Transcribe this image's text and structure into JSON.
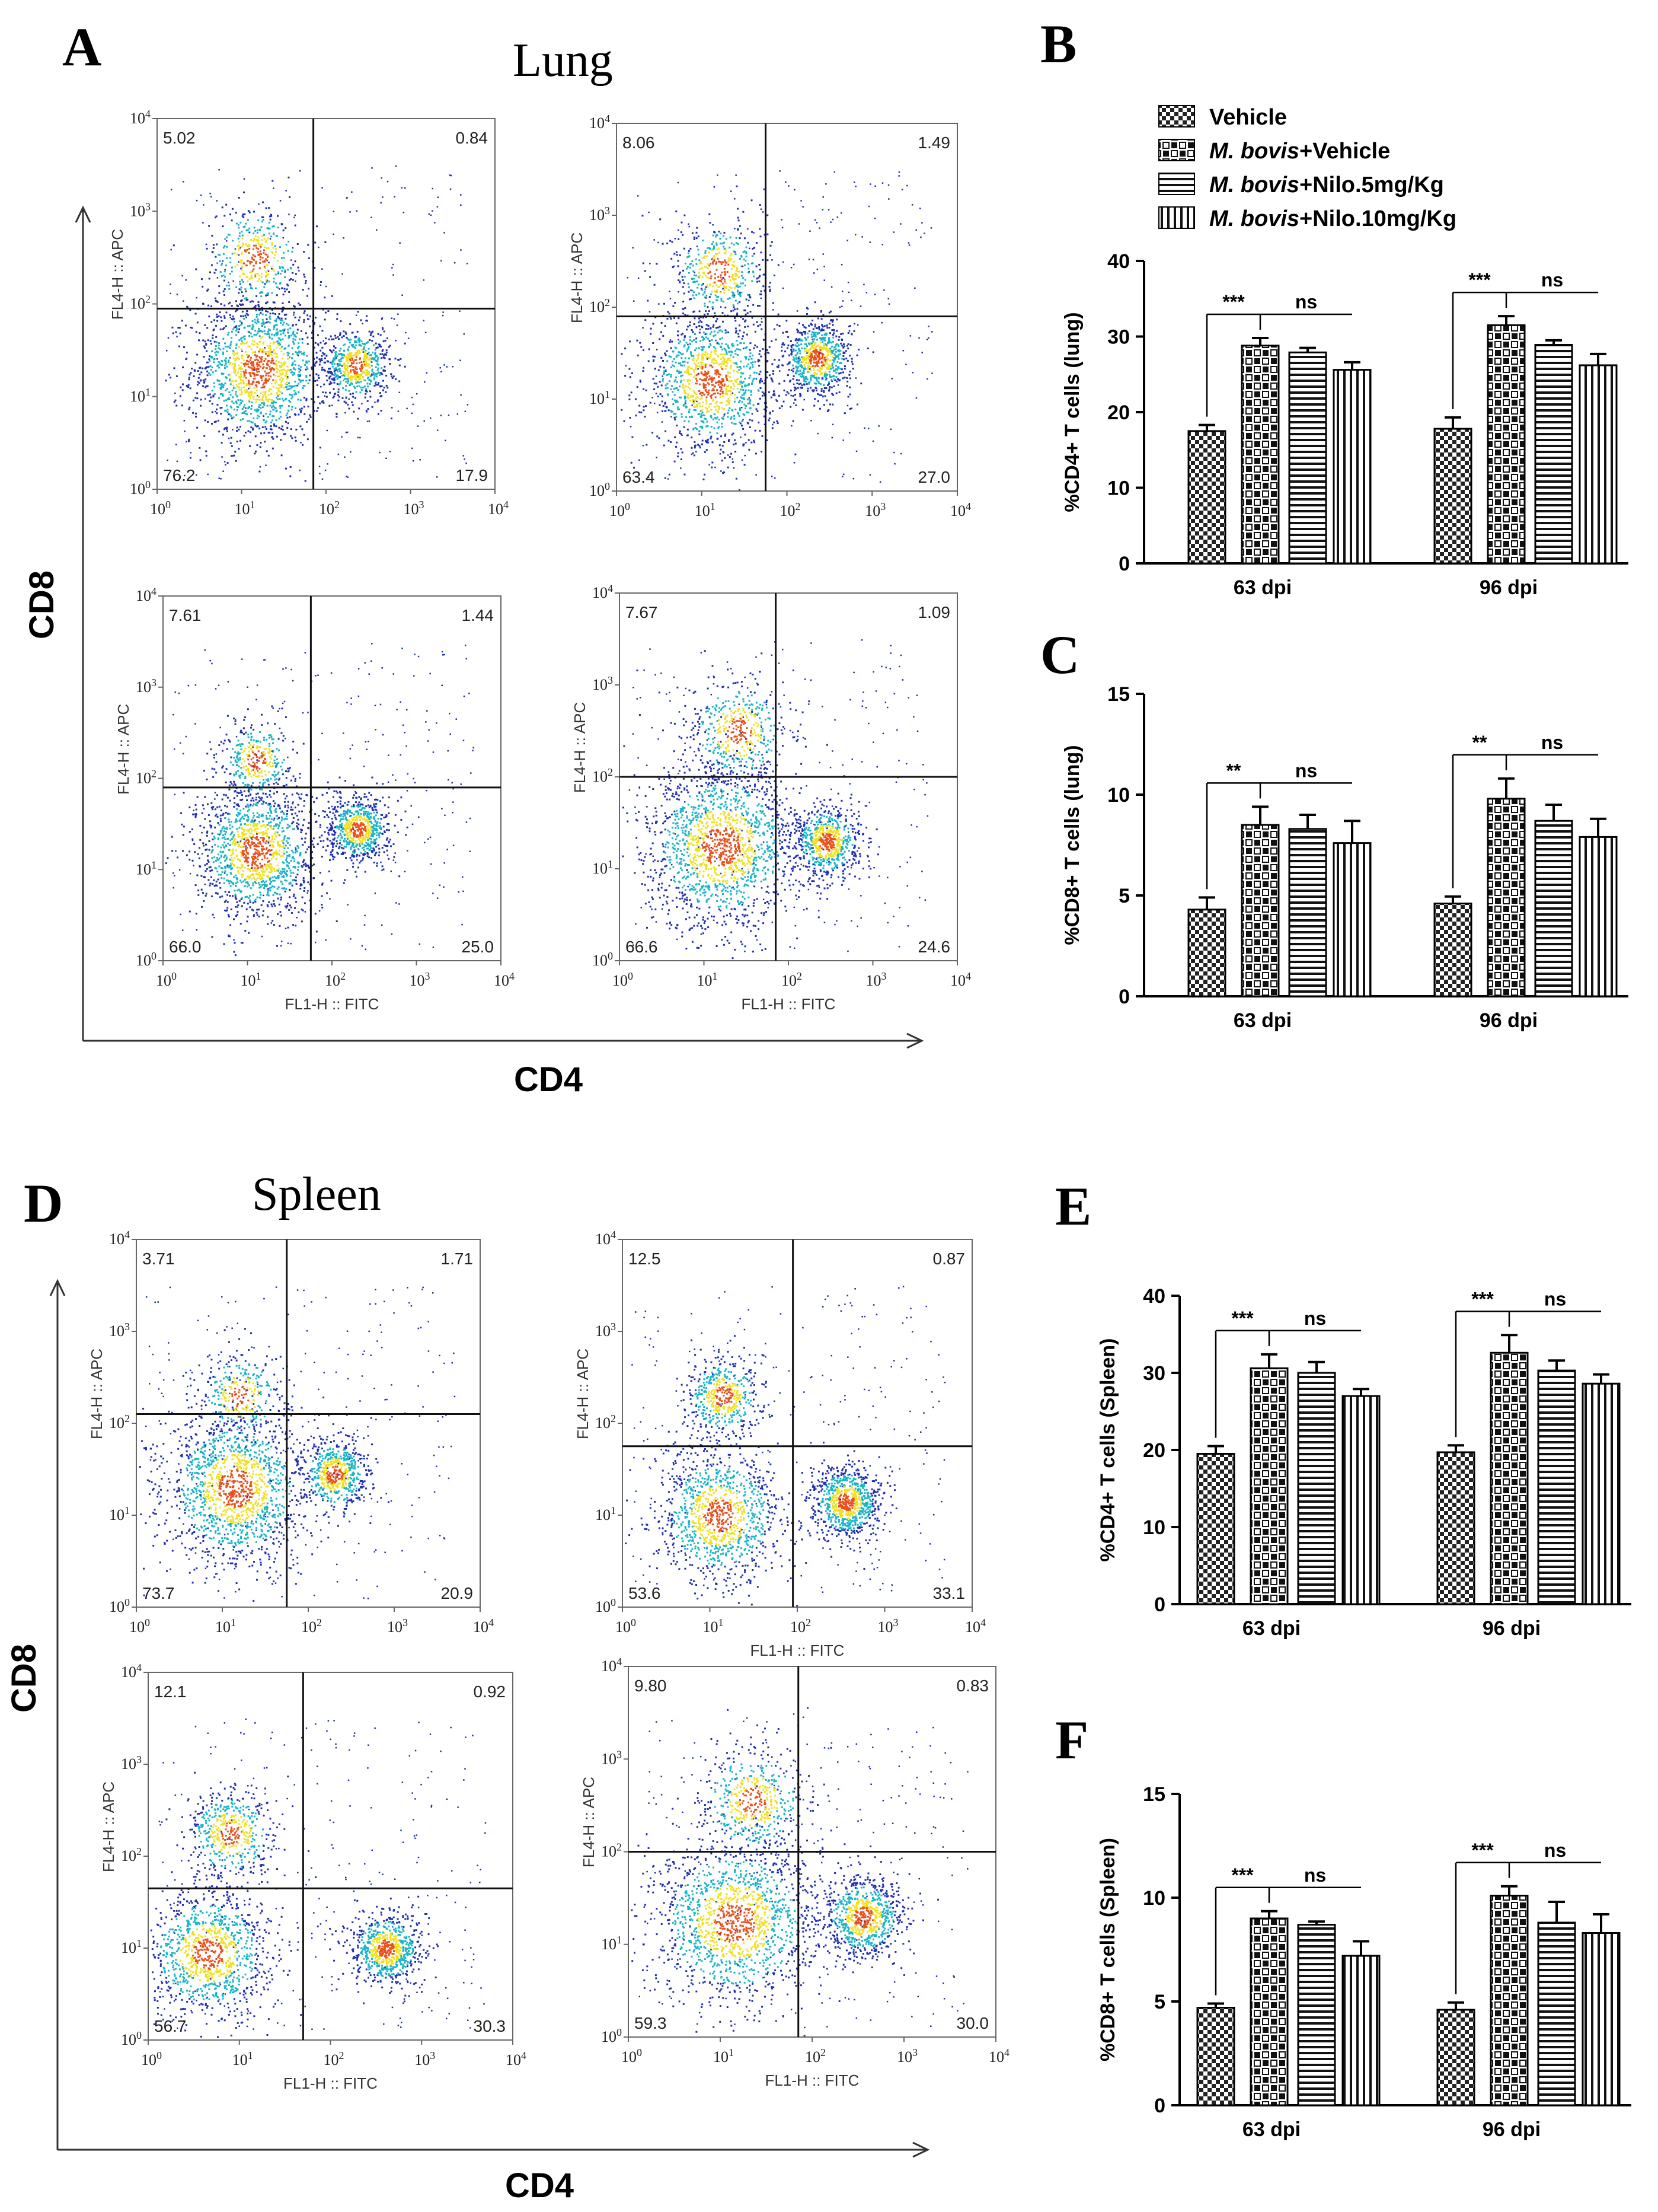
{
  "panel_labels": {
    "a": "A",
    "b": "B",
    "c": "C",
    "d": "D",
    "e": "E",
    "f": "F"
  },
  "titles": {
    "lung": "Lung",
    "spleen": "Spleen"
  },
  "big_axes": {
    "cd8_top": "CD8",
    "cd4_top": "CD4",
    "cd8_bottom": "CD8",
    "cd4_bottom": "CD4"
  },
  "flow": {
    "y_axis_label": "FL4-H :: APC",
    "x_axis_label": "FL1-H :: FITC",
    "ticks": [
      "10",
      "10",
      "10",
      "10",
      "10"
    ],
    "tick_exponents": [
      "0",
      "1",
      "2",
      "3",
      "4"
    ],
    "colors": {
      "low": "#1f2fb0",
      "mid": "#19b4c8",
      "high": "#f0e020",
      "peak": "#e8501c"
    }
  },
  "legend": {
    "items": [
      {
        "italic": "",
        "text": "Vehicle"
      },
      {
        "italic": "M. bovis",
        "text": "+Vehicle"
      },
      {
        "italic": "M. bovis",
        "text": "+Nilo.5mg/Kg"
      },
      {
        "italic": "M. bovis",
        "text": "+Nilo.10mg/Kg"
      }
    ]
  },
  "chart_data": [
    {
      "type": "flow-cytometry-dotplot",
      "panel": "A",
      "tissue": "Lung",
      "x_channel": "FL1-H :: FITC",
      "y_channel": "FL4-H :: APC",
      "plots": [
        {
          "quadrants": {
            "ul": "5.02",
            "ur": "0.84",
            "ll": "76.2",
            "lr": "17.9"
          },
          "gate_x_decade": 1.85,
          "gate_y_decade": 1.95,
          "populations": [
            {
              "x": 1.2,
              "y": 1.3,
              "n": 1400,
              "s": 0.4
            },
            {
              "x": 2.35,
              "y": 1.35,
              "n": 600,
              "s": 0.2
            },
            {
              "x": 1.15,
              "y": 2.5,
              "n": 400,
              "s": 0.3
            }
          ]
        },
        {
          "quadrants": {
            "ul": "8.06",
            "ur": "1.49",
            "ll": "63.4",
            "lr": "27.0"
          },
          "gate_x_decade": 1.75,
          "gate_y_decade": 1.9,
          "populations": [
            {
              "x": 1.1,
              "y": 1.2,
              "n": 1200,
              "s": 0.38
            },
            {
              "x": 2.35,
              "y": 1.45,
              "n": 750,
              "s": 0.2
            },
            {
              "x": 1.2,
              "y": 2.4,
              "n": 450,
              "s": 0.28
            }
          ]
        },
        {
          "quadrants": {
            "ul": "7.61",
            "ur": "1.44",
            "ll": "66.0",
            "lr": "25.0"
          },
          "gate_x_decade": 1.75,
          "gate_y_decade": 1.9,
          "populations": [
            {
              "x": 1.1,
              "y": 1.2,
              "n": 1300,
              "s": 0.36
            },
            {
              "x": 2.3,
              "y": 1.45,
              "n": 700,
              "s": 0.18
            },
            {
              "x": 1.1,
              "y": 2.2,
              "n": 350,
              "s": 0.22
            }
          ]
        },
        {
          "quadrants": {
            "ul": "7.67",
            "ur": "1.09",
            "ll": "66.6",
            "lr": "24.6"
          },
          "gate_x_decade": 1.85,
          "gate_y_decade": 2.0,
          "populations": [
            {
              "x": 1.2,
              "y": 1.25,
              "n": 1600,
              "s": 0.45
            },
            {
              "x": 2.45,
              "y": 1.3,
              "n": 700,
              "s": 0.2
            },
            {
              "x": 1.4,
              "y": 2.5,
              "n": 450,
              "s": 0.3
            }
          ]
        }
      ]
    },
    {
      "type": "bar",
      "panel": "B",
      "categories": [
        "63 dpi",
        "96 dpi"
      ],
      "ylabel": "%CD4+ T cells (lung)",
      "ylim": [
        0,
        40
      ],
      "yticks": [
        0,
        10,
        20,
        30,
        40
      ],
      "series": [
        {
          "name": "Vehicle",
          "values": [
            17.5,
            17.8
          ],
          "errors": [
            0.8,
            1.5
          ]
        },
        {
          "name": "M. bovis+Vehicle",
          "values": [
            28.8,
            31.5
          ],
          "errors": [
            1.0,
            1.2
          ]
        },
        {
          "name": "M. bovis+Nilo.5mg/Kg",
          "values": [
            27.9,
            28.9
          ],
          "errors": [
            0.6,
            0.6
          ]
        },
        {
          "name": "M. bovis+Nilo.10mg/Kg",
          "values": [
            25.6,
            26.2
          ],
          "errors": [
            1.0,
            1.5
          ]
        }
      ],
      "significance": [
        {
          "star": "***",
          "ns": "ns"
        },
        {
          "star": "***",
          "ns": "ns"
        }
      ],
      "yticklabels": [
        "0",
        "10",
        "20",
        "30",
        "40"
      ]
    },
    {
      "type": "bar",
      "panel": "C",
      "categories": [
        "63 dpi",
        "96 dpi"
      ],
      "ylabel": "%CD8+ T cells (lung)",
      "ylim": [
        0,
        15
      ],
      "yticks": [
        0,
        5,
        10,
        15
      ],
      "series": [
        {
          "name": "Vehicle",
          "values": [
            4.3,
            4.6
          ],
          "errors": [
            0.6,
            0.35
          ]
        },
        {
          "name": "M. bovis+Vehicle",
          "values": [
            8.5,
            9.8
          ],
          "errors": [
            0.9,
            1.0
          ]
        },
        {
          "name": "M. bovis+Nilo.5mg/Kg",
          "values": [
            8.3,
            8.7
          ],
          "errors": [
            0.7,
            0.8
          ]
        },
        {
          "name": "M. bovis+Nilo.10mg/Kg",
          "values": [
            7.6,
            7.9
          ],
          "errors": [
            1.1,
            0.9
          ]
        }
      ],
      "significance": [
        {
          "star": "**",
          "ns": "ns"
        },
        {
          "star": "**",
          "ns": "ns"
        }
      ],
      "yticklabels": [
        "0",
        "5",
        "10",
        "15"
      ]
    },
    {
      "type": "flow-cytometry-dotplot",
      "panel": "D",
      "tissue": "Spleen",
      "x_channel": "FL1-H :: FITC",
      "y_channel": "FL4-H :: APC",
      "plots": [
        {
          "quadrants": {
            "ul": "3.71",
            "ur": "1.71",
            "ll": "73.7",
            "lr": "20.9"
          },
          "gate_x_decade": 1.75,
          "gate_y_decade": 2.1,
          "populations": [
            {
              "x": 1.15,
              "y": 1.3,
              "n": 1500,
              "s": 0.42
            },
            {
              "x": 2.3,
              "y": 1.45,
              "n": 600,
              "s": 0.2
            },
            {
              "x": 1.2,
              "y": 2.3,
              "n": 300,
              "s": 0.25
            }
          ]
        },
        {
          "quadrants": {
            "ul": "12.5",
            "ur": "0.87",
            "ll": "53.6",
            "lr": "33.1"
          },
          "gate_x_decade": 1.95,
          "gate_y_decade": 1.75,
          "populations": [
            {
              "x": 1.1,
              "y": 1.0,
              "n": 1100,
              "s": 0.36
            },
            {
              "x": 2.55,
              "y": 1.15,
              "n": 850,
              "s": 0.2
            },
            {
              "x": 1.15,
              "y": 2.3,
              "n": 500,
              "s": 0.22
            }
          ]
        },
        {
          "quadrants": {
            "ul": "12.1",
            "ur": "0.92",
            "ll": "56.7",
            "lr": "30.3"
          },
          "gate_x_decade": 1.7,
          "gate_y_decade": 1.65,
          "populations": [
            {
              "x": 0.65,
              "y": 0.95,
              "n": 1100,
              "s": 0.35
            },
            {
              "x": 2.6,
              "y": 1.0,
              "n": 750,
              "s": 0.2
            },
            {
              "x": 0.9,
              "y": 2.25,
              "n": 500,
              "s": 0.25
            }
          ]
        },
        {
          "quadrants": {
            "ul": "9.80",
            "ur": "0.83",
            "ll": "59.3",
            "lr": "30.0"
          },
          "gate_x_decade": 1.85,
          "gate_y_decade": 2.0,
          "populations": [
            {
              "x": 1.15,
              "y": 1.25,
              "n": 1500,
              "s": 0.45
            },
            {
              "x": 2.55,
              "y": 1.3,
              "n": 800,
              "s": 0.22
            },
            {
              "x": 1.35,
              "y": 2.55,
              "n": 500,
              "s": 0.3
            }
          ]
        }
      ]
    },
    {
      "type": "bar",
      "panel": "E",
      "categories": [
        "63 dpi",
        "96 dpi"
      ],
      "ylabel": "%CD4+ T cells (Spleen)",
      "ylim": [
        0,
        40
      ],
      "yticks": [
        0,
        10,
        20,
        30,
        40
      ],
      "series": [
        {
          "name": "Vehicle",
          "values": [
            19.5,
            19.7
          ],
          "errors": [
            1.0,
            0.9
          ]
        },
        {
          "name": "M. bovis+Vehicle",
          "values": [
            30.6,
            32.6
          ],
          "errors": [
            1.8,
            2.3
          ]
        },
        {
          "name": "M. bovis+Nilo.5mg/Kg",
          "values": [
            30.0,
            30.3
          ],
          "errors": [
            1.4,
            1.3
          ]
        },
        {
          "name": "M. bovis+Nilo.10mg/Kg",
          "values": [
            27.0,
            28.6
          ],
          "errors": [
            0.9,
            1.2
          ]
        }
      ],
      "significance": [
        {
          "star": "***",
          "ns": "ns"
        },
        {
          "star": "***",
          "ns": "ns"
        }
      ],
      "yticklabels": [
        "0",
        "10",
        "20",
        "30",
        "40"
      ]
    },
    {
      "type": "bar",
      "panel": "F",
      "categories": [
        "63 dpi",
        "96 dpi"
      ],
      "ylabel": "%CD8+ T cells (Spleen)",
      "ylim": [
        0,
        15
      ],
      "yticks": [
        0,
        5,
        10,
        15
      ],
      "series": [
        {
          "name": "Vehicle",
          "values": [
            4.7,
            4.6
          ],
          "errors": [
            0.2,
            0.35
          ]
        },
        {
          "name": "M. bovis+Vehicle",
          "values": [
            9.0,
            10.1
          ],
          "errors": [
            0.35,
            0.45
          ]
        },
        {
          "name": "M. bovis+Nilo.5mg/Kg",
          "values": [
            8.7,
            8.8
          ],
          "errors": [
            0.15,
            1.0
          ]
        },
        {
          "name": "M. bovis+Nilo.10mg/Kg",
          "values": [
            7.2,
            8.3
          ],
          "errors": [
            0.7,
            0.9
          ]
        }
      ],
      "significance": [
        {
          "star": "***",
          "ns": "ns"
        },
        {
          "star": "***",
          "ns": "ns"
        }
      ],
      "yticklabels": [
        "0",
        "5",
        "10",
        "15"
      ]
    }
  ]
}
